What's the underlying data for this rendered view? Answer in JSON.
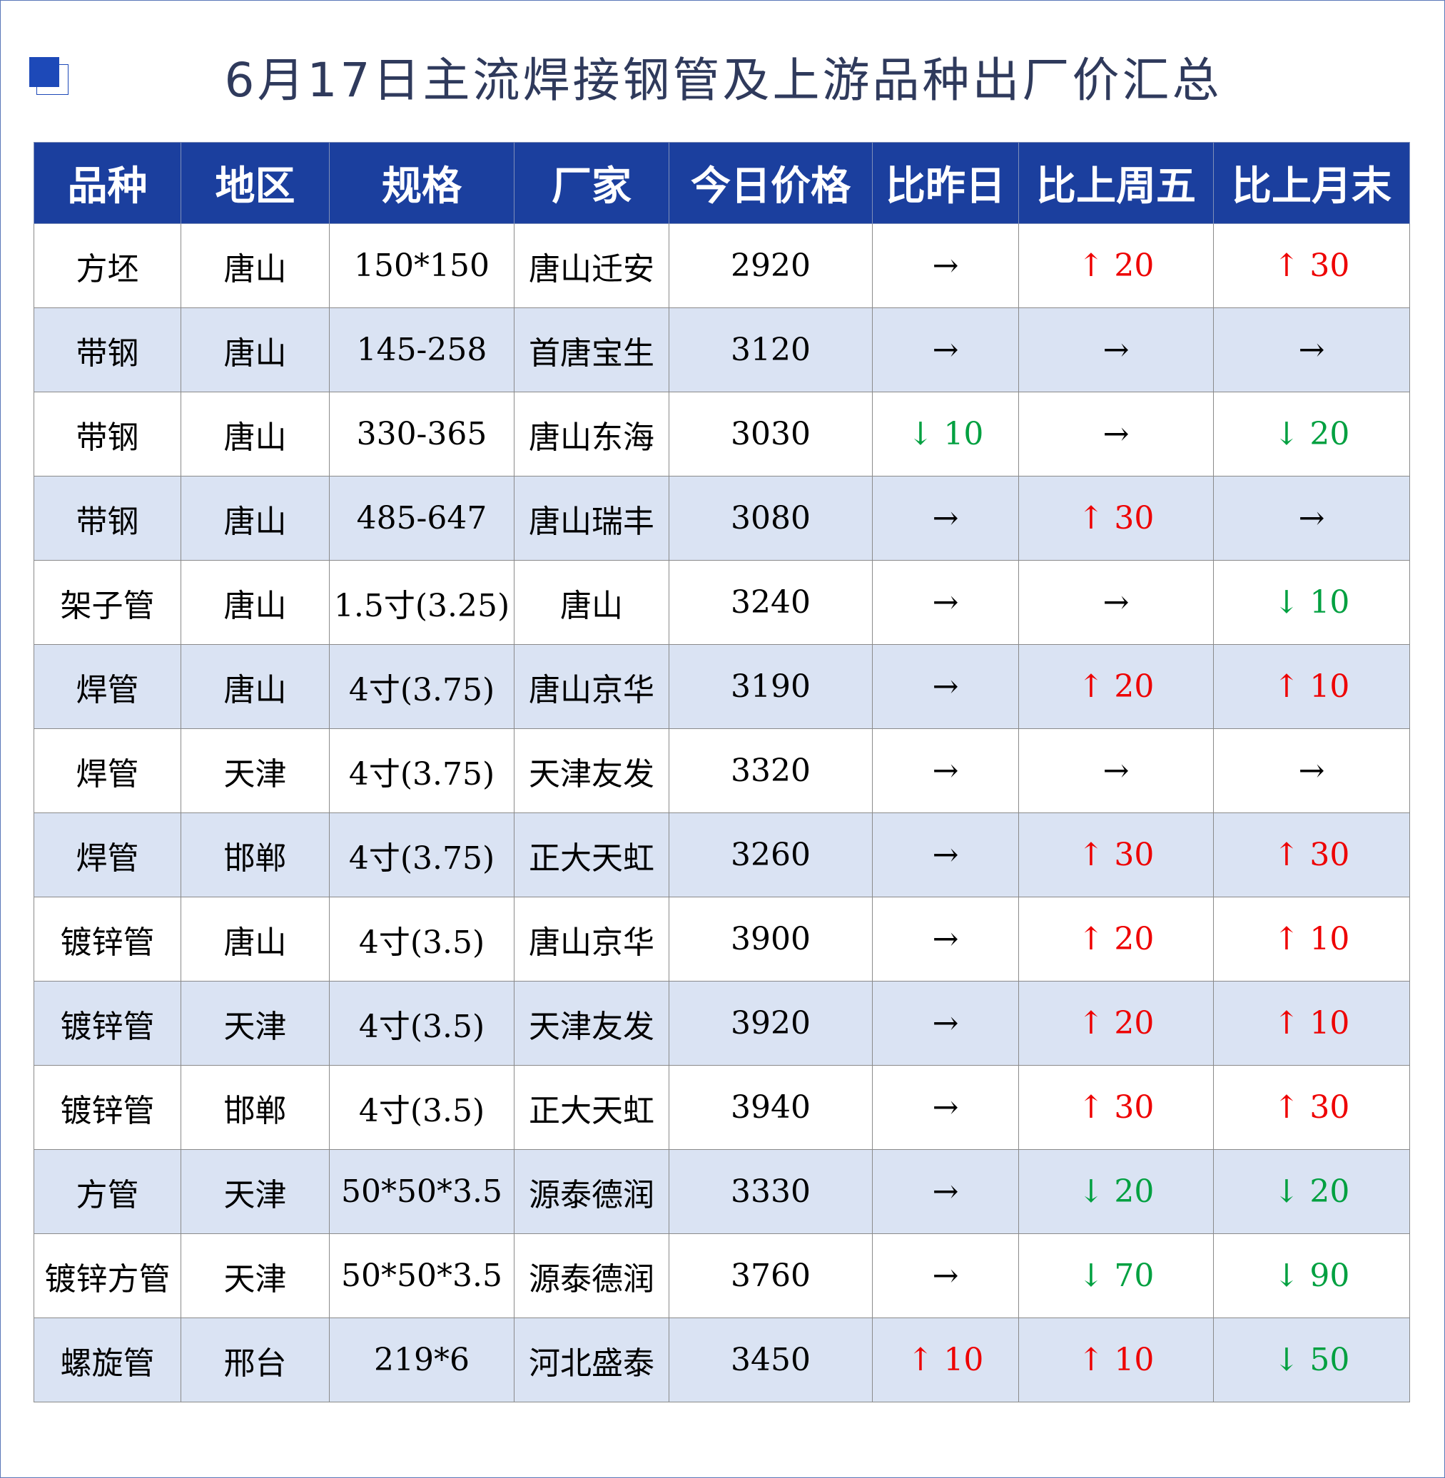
{
  "header": {
    "title": "6月17日主流焊接钢管及上游品种出厂价汇总"
  },
  "trend_colors": {
    "up": "#ee0000",
    "down": "#00a040",
    "flat": "#000000"
  },
  "table": {
    "columns": [
      "品种",
      "地区",
      "规格",
      "厂家",
      "今日价格",
      "比昨日",
      "比上周五",
      "比上月末"
    ],
    "rows": [
      [
        "方坯",
        "唐山",
        "150*150",
        "唐山迁安",
        "2920",
        {
          "text": "→",
          "trend": "flat"
        },
        {
          "text": "↑ 20",
          "trend": "up"
        },
        {
          "text": "↑ 30",
          "trend": "up"
        }
      ],
      [
        "带钢",
        "唐山",
        "145-258",
        "首唐宝生",
        "3120",
        {
          "text": "→",
          "trend": "flat"
        },
        {
          "text": "→",
          "trend": "flat"
        },
        {
          "text": "→",
          "trend": "flat"
        }
      ],
      [
        "带钢",
        "唐山",
        "330-365",
        "唐山东海",
        "3030",
        {
          "text": "↓ 10",
          "trend": "down"
        },
        {
          "text": "→",
          "trend": "flat"
        },
        {
          "text": "↓ 20",
          "trend": "down"
        }
      ],
      [
        "带钢",
        "唐山",
        "485-647",
        "唐山瑞丰",
        "3080",
        {
          "text": "→",
          "trend": "flat"
        },
        {
          "text": "↑ 30",
          "trend": "up"
        },
        {
          "text": "→",
          "trend": "flat"
        }
      ],
      [
        "架子管",
        "唐山",
        "1.5寸(3.25)",
        "唐山",
        "3240",
        {
          "text": "→",
          "trend": "flat"
        },
        {
          "text": "→",
          "trend": "flat"
        },
        {
          "text": "↓ 10",
          "trend": "down"
        }
      ],
      [
        "焊管",
        "唐山",
        "4寸(3.75)",
        "唐山京华",
        "3190",
        {
          "text": "→",
          "trend": "flat"
        },
        {
          "text": "↑ 20",
          "trend": "up"
        },
        {
          "text": "↑ 10",
          "trend": "up"
        }
      ],
      [
        "焊管",
        "天津",
        "4寸(3.75)",
        "天津友发",
        "3320",
        {
          "text": "→",
          "trend": "flat"
        },
        {
          "text": "→",
          "trend": "flat"
        },
        {
          "text": "→",
          "trend": "flat"
        }
      ],
      [
        "焊管",
        "邯郸",
        "4寸(3.75)",
        "正大天虹",
        "3260",
        {
          "text": "→",
          "trend": "flat"
        },
        {
          "text": "↑ 30",
          "trend": "up"
        },
        {
          "text": "↑ 30",
          "trend": "up"
        }
      ],
      [
        "镀锌管",
        "唐山",
        "4寸(3.5)",
        "唐山京华",
        "3900",
        {
          "text": "→",
          "trend": "flat"
        },
        {
          "text": "↑ 20",
          "trend": "up"
        },
        {
          "text": "↑ 10",
          "trend": "up"
        }
      ],
      [
        "镀锌管",
        "天津",
        "4寸(3.5)",
        "天津友发",
        "3920",
        {
          "text": "→",
          "trend": "flat"
        },
        {
          "text": "↑ 20",
          "trend": "up"
        },
        {
          "text": "↑ 10",
          "trend": "up"
        }
      ],
      [
        "镀锌管",
        "邯郸",
        "4寸(3.5)",
        "正大天虹",
        "3940",
        {
          "text": "→",
          "trend": "flat"
        },
        {
          "text": "↑ 30",
          "trend": "up"
        },
        {
          "text": "↑ 30",
          "trend": "up"
        }
      ],
      [
        "方管",
        "天津",
        "50*50*3.5",
        "源泰德润",
        "3330",
        {
          "text": "→",
          "trend": "flat"
        },
        {
          "text": "↓ 20",
          "trend": "down"
        },
        {
          "text": "↓ 20",
          "trend": "down"
        }
      ],
      [
        "镀锌方管",
        "天津",
        "50*50*3.5",
        "源泰德润",
        "3760",
        {
          "text": "→",
          "trend": "flat"
        },
        {
          "text": "↓ 70",
          "trend": "down"
        },
        {
          "text": "↓ 90",
          "trend": "down"
        }
      ],
      [
        "螺旋管",
        "邢台",
        "219*6",
        "河北盛泰",
        "3450",
        {
          "text": "↑ 10",
          "trend": "up"
        },
        {
          "text": "↑ 10",
          "trend": "up"
        },
        {
          "text": "↓ 50",
          "trend": "down"
        }
      ]
    ]
  }
}
